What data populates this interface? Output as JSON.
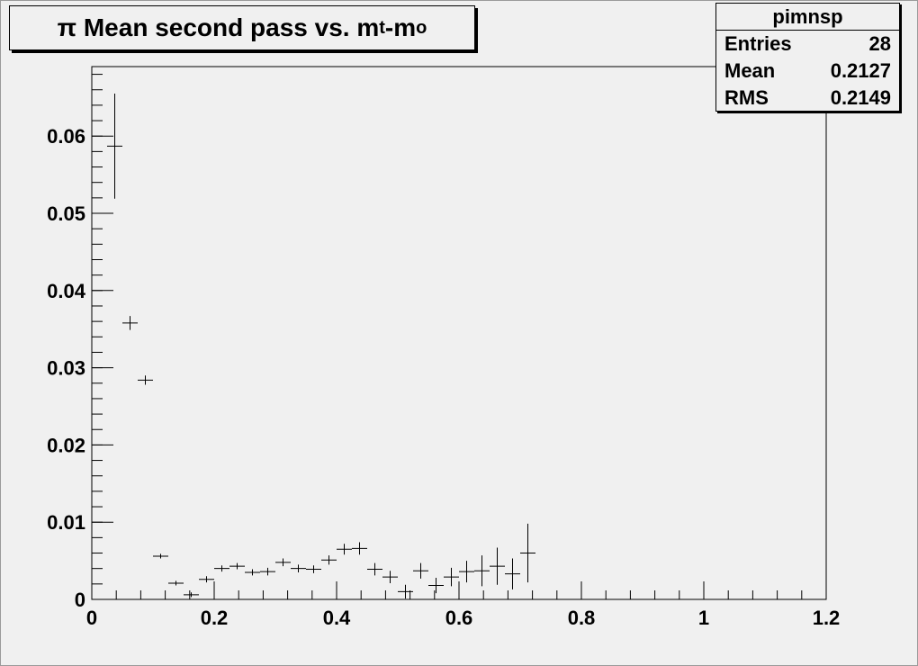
{
  "chart_data": {
    "type": "scatter",
    "title_main": "π Mean second pass vs. m",
    "title_sub1": "t",
    "title_mid": "-m",
    "title_sub2": "o",
    "xlim": [
      0,
      1.2
    ],
    "ylim": [
      0,
      0.069
    ],
    "x_ticks": [
      "0",
      "0.2",
      "0.4",
      "0.6",
      "0.8",
      "1",
      "1.2"
    ],
    "x_tick_values": [
      0,
      0.2,
      0.4,
      0.6,
      0.8,
      1.0,
      1.2
    ],
    "y_ticks": [
      "0",
      "0.01",
      "0.02",
      "0.03",
      "0.04",
      "0.05",
      "0.06"
    ],
    "y_tick_values": [
      0,
      0.01,
      0.02,
      0.03,
      0.04,
      0.05,
      0.06
    ],
    "bin_width": 0.025,
    "points": [
      {
        "x": 0.0375,
        "y": 0.0587,
        "err": 0.0068
      },
      {
        "x": 0.0625,
        "y": 0.0358,
        "err": 0.0009
      },
      {
        "x": 0.0875,
        "y": 0.0284,
        "err": 0.0006
      },
      {
        "x": 0.1125,
        "y": 0.0056,
        "err": 0.0003
      },
      {
        "x": 0.1375,
        "y": 0.0021,
        "err": 0.0003
      },
      {
        "x": 0.1625,
        "y": 0.0006,
        "err": 0.0003
      },
      {
        "x": 0.1875,
        "y": 0.0026,
        "err": 0.0004
      },
      {
        "x": 0.2125,
        "y": 0.004,
        "err": 0.0004
      },
      {
        "x": 0.2375,
        "y": 0.0043,
        "err": 0.0004
      },
      {
        "x": 0.2625,
        "y": 0.0035,
        "err": 0.0004
      },
      {
        "x": 0.2875,
        "y": 0.0036,
        "err": 0.0005
      },
      {
        "x": 0.3125,
        "y": 0.0048,
        "err": 0.0005
      },
      {
        "x": 0.3375,
        "y": 0.004,
        "err": 0.0005
      },
      {
        "x": 0.3625,
        "y": 0.0039,
        "err": 0.0005
      },
      {
        "x": 0.3875,
        "y": 0.0051,
        "err": 0.0006
      },
      {
        "x": 0.4125,
        "y": 0.0065,
        "err": 0.0007
      },
      {
        "x": 0.4375,
        "y": 0.0066,
        "err": 0.0008
      },
      {
        "x": 0.4625,
        "y": 0.0039,
        "err": 0.0008
      },
      {
        "x": 0.4875,
        "y": 0.0029,
        "err": 0.0008
      },
      {
        "x": 0.5125,
        "y": 0.001,
        "err": 0.0009
      },
      {
        "x": 0.5375,
        "y": 0.0037,
        "err": 0.001
      },
      {
        "x": 0.5625,
        "y": 0.0018,
        "err": 0.001
      },
      {
        "x": 0.5875,
        "y": 0.0029,
        "err": 0.0012
      },
      {
        "x": 0.6125,
        "y": 0.0036,
        "err": 0.0014
      },
      {
        "x": 0.6375,
        "y": 0.0037,
        "err": 0.002
      },
      {
        "x": 0.6625,
        "y": 0.0043,
        "err": 0.0024
      },
      {
        "x": 0.6875,
        "y": 0.0033,
        "err": 0.002
      },
      {
        "x": 0.7125,
        "y": 0.006,
        "err": 0.0038
      }
    ]
  },
  "stats": {
    "name": "pimnsp",
    "entries_label": "Entries",
    "entries_value": "28",
    "mean_label": "Mean",
    "mean_value": "0.2127",
    "rms_label": "RMS",
    "rms_value": "0.2149"
  },
  "colors": {
    "background": "#f0f0f0",
    "frame": "#000000",
    "markers": "#000000"
  }
}
